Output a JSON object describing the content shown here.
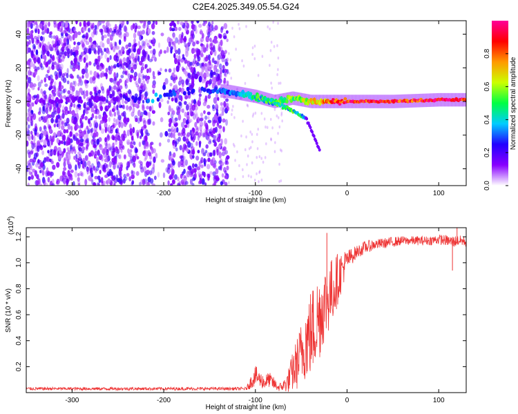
{
  "title": "C2E4.2025.349.05.54.G24",
  "colors": {
    "snr_line": "#ee3333",
    "colormap": [
      "#ffffff",
      "#8800ff",
      "#2200ff",
      "#00ccff",
      "#00ff44",
      "#ccff00",
      "#ff9900",
      "#ff0000",
      "#ff0099"
    ]
  },
  "chart_data": [
    {
      "type": "heatmap",
      "title": "C2E4.2025.349.05.54.G24",
      "xlabel": "Height of straight line (km)",
      "ylabel": "Frequency (Hz)",
      "xlim": [
        -350,
        130
      ],
      "ylim": [
        -50,
        48
      ],
      "xticks": [
        -300,
        -200,
        -100,
        0,
        100
      ],
      "yticks": [
        -40,
        -20,
        0,
        20,
        40
      ],
      "colorbar": {
        "label": "Normalized spectral amplitude",
        "range": [
          0,
          1
        ],
        "ticks": [
          "0.0",
          "0.2",
          "0.4",
          "0.6",
          "0.8"
        ],
        "tick_values": [
          0.0,
          0.2,
          0.4,
          0.6,
          0.8
        ]
      },
      "features": {
        "noise_region_km": [
          -350,
          -130
        ],
        "noise_gap_km": [
          -210,
          -195
        ],
        "ridge": {
          "x": [
            -350,
            -300,
            -250,
            -215,
            -200,
            -160,
            -130,
            -100,
            -80,
            -60,
            -40,
            -20,
            0,
            50,
            100,
            130
          ],
          "freq": [
            0,
            1,
            2,
            0,
            4,
            7,
            6,
            3,
            0,
            2,
            0,
            0,
            0,
            0,
            1,
            1
          ],
          "amplitude": [
            0.1,
            0.15,
            0.15,
            0.35,
            0.3,
            0.25,
            0.3,
            0.45,
            0.5,
            0.55,
            0.65,
            0.8,
            0.9,
            0.9,
            0.95,
            0.9
          ]
        },
        "branch": {
          "x": [
            -100,
            -80,
            -60,
            -45,
            -40,
            -35,
            -30
          ],
          "freq": [
            3,
            -1,
            -5,
            -10,
            -16,
            -22,
            -29
          ]
        }
      }
    },
    {
      "type": "line",
      "title": "",
      "xlabel": "Height of straight line (km)",
      "ylabel": "SNR (10 * v/v)",
      "y_multiplier": "(x10",
      "y_multiplier_exp": "4",
      "y_multiplier_close": ")",
      "xlim": [
        -350,
        130
      ],
      "ylim": [
        0,
        1.27
      ],
      "xticks": [
        -300,
        -200,
        -100,
        0,
        100
      ],
      "yticks": [
        0.2,
        0.4,
        0.6,
        0.8,
        1.0,
        1.2
      ],
      "ytick_labels": [
        "0.2",
        "0.4",
        "0.6",
        "0.8",
        "1.0",
        "1.2"
      ],
      "series": [
        {
          "x": [
            -350,
            -300,
            -250,
            -200,
            -150,
            -110,
            -105,
            -100,
            -95,
            -90,
            -85,
            -80,
            -75,
            -70,
            -65,
            -60,
            -55,
            -50,
            -45,
            -40,
            -35,
            -30,
            -25,
            -20,
            -15,
            -10,
            -5,
            0,
            10,
            20,
            30,
            40,
            50,
            60,
            70,
            80,
            90,
            100,
            110,
            115,
            120,
            125,
            130
          ],
          "y": [
            0.03,
            0.03,
            0.03,
            0.03,
            0.03,
            0.03,
            0.08,
            0.13,
            0.1,
            0.08,
            0.1,
            0.07,
            0.04,
            0.05,
            0.08,
            0.15,
            0.22,
            0.3,
            0.4,
            0.45,
            0.52,
            0.6,
            0.68,
            0.74,
            0.8,
            0.88,
            0.95,
            1.02,
            1.08,
            1.12,
            1.14,
            1.15,
            1.16,
            1.17,
            1.17,
            1.17,
            1.17,
            1.18,
            1.17,
            1.16,
            1.17,
            1.17,
            1.16
          ],
          "spread": [
            0.012,
            0.012,
            0.012,
            0.012,
            0.012,
            0.012,
            0.05,
            0.08,
            0.06,
            0.06,
            0.06,
            0.05,
            0.03,
            0.04,
            0.08,
            0.15,
            0.2,
            0.25,
            0.3,
            0.35,
            0.35,
            0.35,
            0.3,
            0.28,
            0.25,
            0.2,
            0.15,
            0.08,
            0.05,
            0.05,
            0.04,
            0.04,
            0.04,
            0.035,
            0.035,
            0.035,
            0.035,
            0.04,
            0.04,
            0.05,
            0.04,
            0.04,
            0.04
          ]
        }
      ]
    }
  ]
}
